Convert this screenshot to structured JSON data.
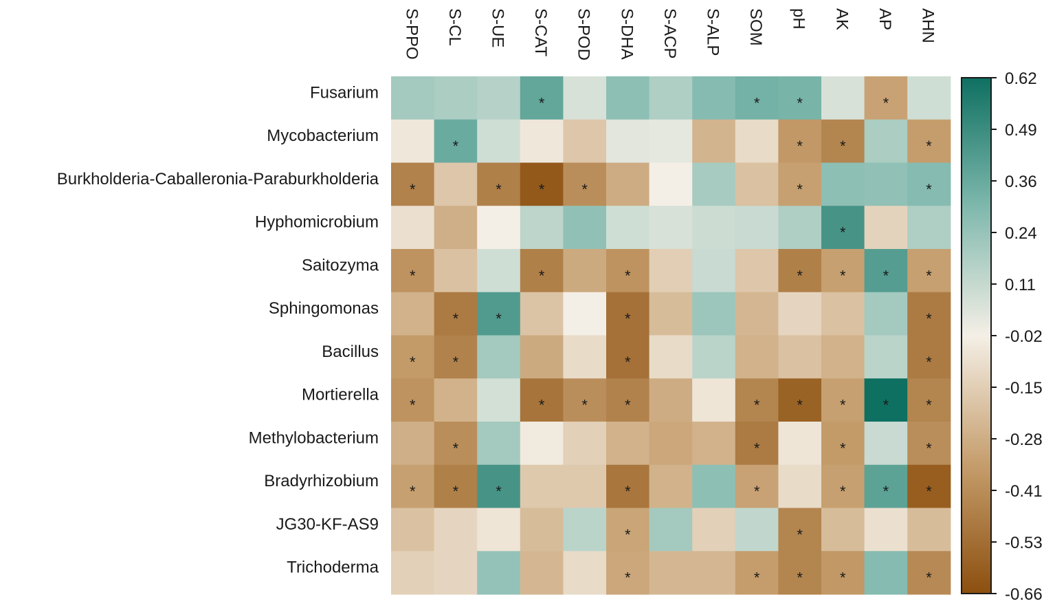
{
  "chart_data": {
    "type": "heatmap",
    "title": "",
    "columns": [
      "S-PPO",
      "S-CL",
      "S-UE",
      "S-CAT",
      "S-POD",
      "S-DHA",
      "S-ACP",
      "S-ALP",
      "SOM",
      "pH",
      "AK",
      "AP",
      "AHN"
    ],
    "rows": [
      "Fusarium",
      "Mycobacterium",
      "Burkholderia-Caballeronia-Paraburkholderia",
      "Hyphomicrobium",
      "Saitozyma",
      "Sphingomonas",
      "Bacillus",
      "Mortierella",
      "Methylobacterium",
      "Bradyrhizobium",
      "JG30-KF-AS9",
      "Trichoderma"
    ],
    "values": [
      [
        0.2,
        0.18,
        0.15,
        0.38,
        0.06,
        0.26,
        0.17,
        0.28,
        0.33,
        0.32,
        0.06,
        -0.32,
        0.08
      ],
      [
        -0.05,
        0.36,
        0.08,
        -0.05,
        -0.18,
        0.03,
        0.02,
        -0.25,
        -0.1,
        -0.36,
        -0.44,
        0.18,
        -0.34
      ],
      [
        -0.45,
        -0.18,
        -0.46,
        -0.62,
        -0.4,
        -0.28,
        -0.02,
        0.19,
        -0.2,
        -0.33,
        0.26,
        0.25,
        0.28
      ],
      [
        -0.08,
        -0.27,
        -0.02,
        0.13,
        0.25,
        0.08,
        0.06,
        0.09,
        0.1,
        0.17,
        0.46,
        -0.13,
        0.17
      ],
      [
        -0.38,
        -0.2,
        0.08,
        -0.46,
        -0.29,
        -0.38,
        -0.15,
        0.1,
        -0.18,
        -0.46,
        -0.33,
        0.42,
        -0.33
      ],
      [
        -0.26,
        -0.48,
        0.43,
        -0.19,
        -0.02,
        -0.52,
        -0.22,
        0.22,
        -0.24,
        -0.12,
        -0.2,
        0.2,
        -0.48
      ],
      [
        -0.35,
        -0.45,
        0.2,
        -0.29,
        -0.1,
        -0.52,
        -0.1,
        0.14,
        -0.26,
        -0.2,
        -0.26,
        0.14,
        -0.48
      ],
      [
        -0.38,
        -0.26,
        0.07,
        -0.51,
        -0.4,
        -0.45,
        -0.28,
        -0.06,
        -0.44,
        -0.58,
        -0.33,
        0.62,
        -0.44
      ],
      [
        -0.27,
        -0.4,
        0.2,
        -0.04,
        -0.14,
        -0.26,
        -0.3,
        -0.26,
        -0.48,
        -0.06,
        -0.35,
        0.1,
        -0.4
      ],
      [
        -0.33,
        -0.46,
        0.46,
        -0.17,
        -0.17,
        -0.5,
        -0.26,
        0.26,
        -0.32,
        -0.1,
        -0.33,
        0.4,
        -0.6
      ],
      [
        -0.2,
        -0.12,
        -0.06,
        -0.22,
        0.14,
        -0.31,
        0.2,
        -0.14,
        0.12,
        -0.44,
        -0.22,
        -0.08,
        -0.22
      ],
      [
        -0.14,
        -0.12,
        0.24,
        -0.24,
        -0.1,
        -0.3,
        -0.24,
        -0.24,
        -0.34,
        -0.44,
        -0.36,
        0.28,
        -0.42
      ]
    ],
    "significance": [
      [
        false,
        false,
        false,
        true,
        false,
        false,
        false,
        false,
        true,
        true,
        false,
        true,
        false
      ],
      [
        false,
        true,
        false,
        false,
        false,
        false,
        false,
        false,
        false,
        true,
        true,
        false,
        true
      ],
      [
        true,
        false,
        true,
        true,
        true,
        false,
        false,
        false,
        false,
        true,
        false,
        false,
        true
      ],
      [
        false,
        false,
        false,
        false,
        false,
        false,
        false,
        false,
        false,
        false,
        true,
        false,
        false
      ],
      [
        true,
        false,
        false,
        true,
        false,
        true,
        false,
        false,
        false,
        true,
        true,
        true,
        true
      ],
      [
        false,
        true,
        true,
        false,
        false,
        true,
        false,
        false,
        false,
        false,
        false,
        false,
        true
      ],
      [
        true,
        true,
        false,
        false,
        false,
        true,
        false,
        false,
        false,
        false,
        false,
        false,
        true
      ],
      [
        true,
        false,
        false,
        true,
        true,
        true,
        false,
        false,
        true,
        true,
        true,
        true,
        true
      ],
      [
        false,
        true,
        false,
        false,
        false,
        false,
        false,
        false,
        true,
        false,
        true,
        false,
        true
      ],
      [
        true,
        true,
        true,
        false,
        false,
        true,
        false,
        false,
        true,
        false,
        true,
        true,
        true
      ],
      [
        false,
        false,
        false,
        false,
        false,
        true,
        false,
        false,
        false,
        true,
        false,
        false,
        false
      ],
      [
        false,
        false,
        false,
        false,
        false,
        true,
        false,
        false,
        true,
        true,
        true,
        false,
        true
      ]
    ],
    "significance_marker": "*",
    "colorbar": {
      "ticks": [
        "0.62",
        "0.49",
        "0.36",
        "0.24",
        "0.11",
        "-0.02",
        "-0.15",
        "-0.28",
        "-0.41",
        "-0.53",
        "-0.66"
      ],
      "min": -0.66,
      "max": 0.62
    },
    "colors": {
      "high": "#0e7061",
      "mid": "#f4efe6",
      "low": "#8c4f0f"
    }
  }
}
